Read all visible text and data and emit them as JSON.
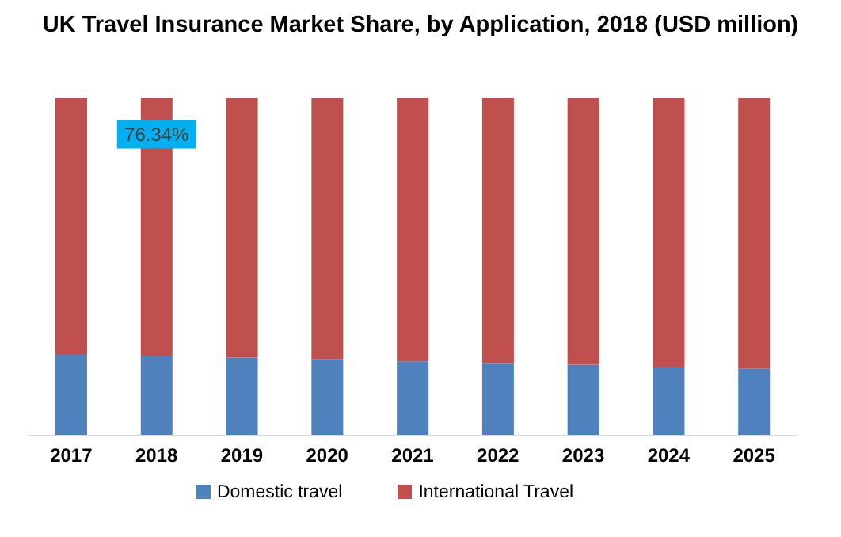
{
  "chart_data": {
    "type": "bar",
    "title": "UK Travel Insurance Market Share, by Application, 2018 (USD million)",
    "categories": [
      "2017",
      "2018",
      "2019",
      "2020",
      "2021",
      "2022",
      "2023",
      "2024",
      "2025"
    ],
    "stacked": true,
    "legend": "bottom",
    "grid": false,
    "ylim": [
      0,
      100
    ],
    "series": [
      {
        "name": "Domestic travel",
        "color": "#4f81bd",
        "values": [
          24.2,
          23.66,
          23.1,
          22.6,
          22,
          21.5,
          21,
          20.4,
          19.9
        ]
      },
      {
        "name": "International Travel",
        "color": "#c0504d",
        "values": [
          75.8,
          76.34,
          76.9,
          77.4,
          78,
          78.5,
          79,
          79.6,
          80.1
        ],
        "value_labels": [
          null,
          "76.34%",
          null,
          null,
          null,
          null,
          null,
          null,
          null
        ]
      }
    ]
  }
}
